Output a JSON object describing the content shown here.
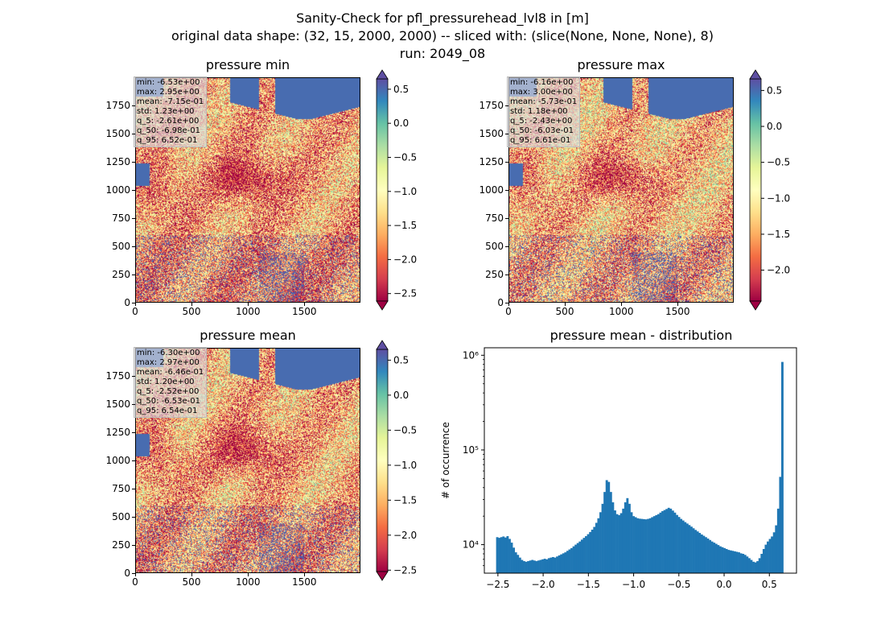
{
  "suptitle": {
    "line1": "Sanity-Check for pfl_pressurehead_lvl8 in [m]",
    "line2": "original data shape: (32, 15, 2000, 2000) -- sliced with: (slice(None, None, None), 8)",
    "line3": "run: 2049_08"
  },
  "panels": [
    {
      "title": "pressure min",
      "stats": [
        "min: -6.53e+00",
        "max: 2.95e+00",
        "mean: -7.15e-01",
        "std: 1.23e+00",
        "q_5: -2.61e+00",
        "q_50: -6.98e-01",
        "q_95: 6.52e-01"
      ]
    },
    {
      "title": "pressure max",
      "stats": [
        "min: -6.16e+00",
        "max: 3.00e+00",
        "mean: -5.73e-01",
        "std: 1.18e+00",
        "q_5: -2.43e+00",
        "q_50: -6.03e-01",
        "q_95: 6.61e-01"
      ]
    },
    {
      "title": "pressure mean",
      "stats": [
        "min: -6.30e+00",
        "max: 2.97e+00",
        "mean: -6.46e-01",
        "std: 1.20e+00",
        "q_5: -2.52e+00",
        "q_50: -6.53e-01",
        "q_95: 6.54e-01"
      ]
    }
  ],
  "map_axes": {
    "x_ticks": [
      "0",
      "500",
      "1000",
      "1500"
    ],
    "y_ticks": [
      "0",
      "250",
      "500",
      "750",
      "1000",
      "1250",
      "1500",
      "1750"
    ]
  },
  "colorbars": [
    {
      "ticks": [
        "0.5",
        "0.0",
        "−0.5",
        "−1.0",
        "−1.5",
        "−2.0",
        "−2.5"
      ],
      "range": [
        -2.61,
        0.652
      ]
    },
    {
      "ticks": [
        "0.5",
        "0.0",
        "−0.5",
        "−1.0",
        "−1.5",
        "−2.0"
      ],
      "range": [
        -2.43,
        0.661
      ]
    },
    {
      "ticks": [
        "0.5",
        "0.0",
        "−0.5",
        "−1.0",
        "−1.5",
        "−2.0",
        "−2.5"
      ],
      "range": [
        -2.52,
        0.654
      ]
    }
  ],
  "colormap": "Spectral",
  "chart_data": {
    "type": "bar",
    "title": "pressure mean - distribution",
    "xlabel": "",
    "ylabel": "# of occurrence",
    "yscale": "log",
    "ylim": [
      5000,
      1200000
    ],
    "xlim": [
      -2.65,
      0.8
    ],
    "x_ticks": [
      "−2.5",
      "−2.0",
      "−1.5",
      "−1.0",
      "−0.5",
      "0.0",
      "0.5"
    ],
    "y_ticks": [
      "10⁴",
      "10⁵",
      "10⁶"
    ],
    "bar_color": "#1f77b4",
    "bin_range": [
      -2.52,
      0.654
    ],
    "bin_counts": [
      12000,
      11800,
      12000,
      12200,
      11900,
      12300,
      11500,
      10500,
      9300,
      8300,
      7800,
      7300,
      6900,
      6700,
      6600,
      6700,
      6800,
      6900,
      6800,
      6700,
      6800,
      6900,
      7000,
      7100,
      7000,
      7200,
      7300,
      7400,
      7300,
      7500,
      7700,
      7900,
      8100,
      8300,
      8600,
      8900,
      9200,
      9600,
      10000,
      10400,
      10800,
      11300,
      11800,
      12300,
      12900,
      13600,
      14400,
      15400,
      17000,
      19000,
      22000,
      27000,
      36000,
      48000,
      46000,
      36000,
      28000,
      23000,
      21000,
      20500,
      21500,
      24000,
      28000,
      31000,
      27000,
      22000,
      20000,
      19500,
      19000,
      18800,
      18700,
      18600,
      18500,
      18700,
      19000,
      19500,
      20000,
      20500,
      21000,
      21800,
      22600,
      23200,
      23800,
      24500,
      24000,
      22900,
      21800,
      20600,
      19600,
      18700,
      18000,
      17300,
      16700,
      16100,
      15500,
      14900,
      14300,
      13800,
      13300,
      12800,
      12400,
      12000,
      11600,
      11200,
      10800,
      10500,
      10200,
      9900,
      9600,
      9400,
      9200,
      9000,
      8800,
      8700,
      8600,
      8500,
      8400,
      8300,
      8100,
      8000,
      7800,
      7500,
      7200,
      6900,
      6600,
      6500,
      6700,
      7200,
      8000,
      9000,
      10000,
      10800,
      11500,
      12200,
      13500,
      16000,
      24000,
      52000,
      850000
    ]
  }
}
